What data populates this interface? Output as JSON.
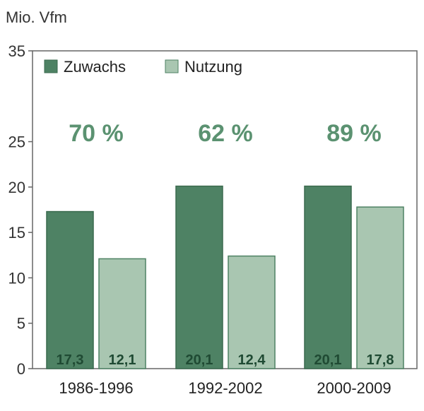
{
  "chart_data": {
    "type": "bar",
    "ylabel": "Mio. Vfm",
    "ylim": [
      0,
      35
    ],
    "yticks": [
      0,
      5,
      10,
      15,
      20,
      25,
      35
    ],
    "categories": [
      "1986-1996",
      "1992-2002",
      "2000-2009"
    ],
    "series": [
      {
        "name": "Zuwachs",
        "values": [
          17.3,
          20.1,
          20.1
        ],
        "labels": [
          "17,3",
          "20,1",
          "20,1"
        ],
        "color": "#4e8264"
      },
      {
        "name": "Nutzung",
        "values": [
          12.1,
          12.4,
          17.8
        ],
        "labels": [
          "12,1",
          "12,4",
          "17,8"
        ],
        "color": "#a9c6b1"
      }
    ],
    "annotations": [
      "70 %",
      "62 %",
      "89 %"
    ],
    "annotation_color": "#5b9271",
    "legend_position": "top-left",
    "grid": false
  }
}
